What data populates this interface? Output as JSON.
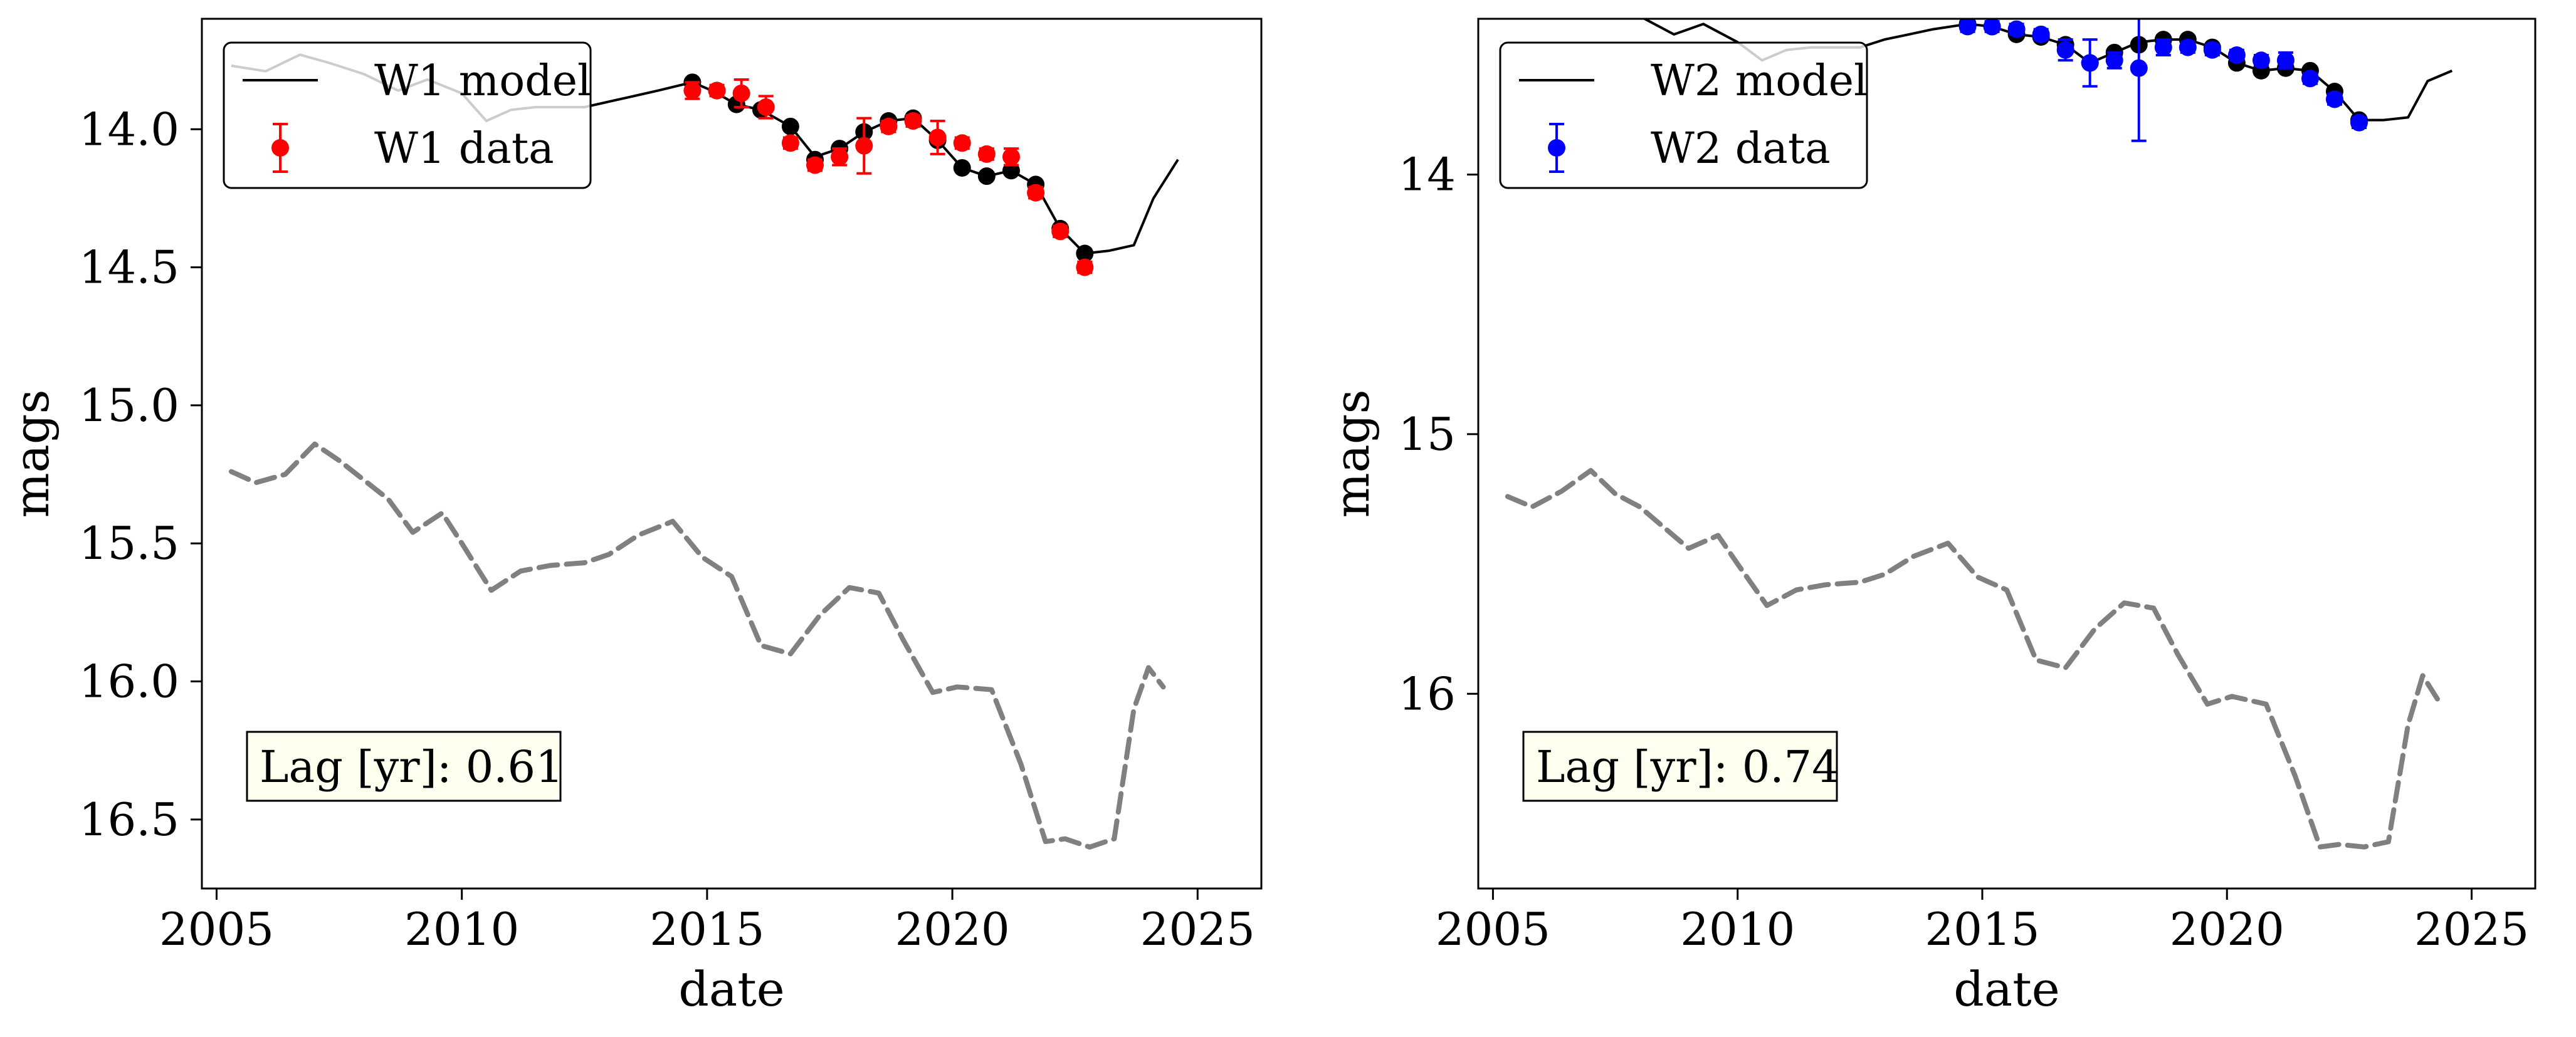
{
  "chart_data": [
    {
      "type": "line",
      "xlabel": "date",
      "ylabel": "mags",
      "xlim": [
        2004.7,
        2026.3
      ],
      "ylim": [
        16.75,
        13.6
      ],
      "y_inverted": true,
      "x_ticks": [
        2005,
        2010,
        2015,
        2020,
        2025
      ],
      "x_tick_labels": [
        "2005",
        "2010",
        "2015",
        "2020",
        "2025"
      ],
      "y_ticks": [
        14.0,
        14.5,
        15.0,
        15.5,
        16.0,
        16.5
      ],
      "y_tick_labels": [
        "14.0",
        "14.5",
        "15.0",
        "15.5",
        "16.0",
        "16.5"
      ],
      "legend_position": "top-left",
      "legend": [
        {
          "label": "W1 model",
          "marker": "line",
          "color": "#000000"
        },
        {
          "label": "W1 data",
          "marker": "errorbar-point",
          "color": "#ff0000"
        }
      ],
      "annotation": {
        "text": "Lag [yr]: 0.61",
        "position": "bottom-left",
        "background": "#fffff0"
      },
      "series": [
        {
          "name": "W1 model",
          "kind": "line",
          "color": "#000000",
          "x": [
            2005.3,
            2006.0,
            2006.7,
            2007.3,
            2008.0,
            2008.7,
            2009.3,
            2010.0,
            2010.5,
            2011.0,
            2011.5,
            2012.0,
            2012.5,
            2013.0,
            2013.5,
            2014.0,
            2014.7,
            2015.1,
            2015.6,
            2016.1,
            2016.7,
            2017.2,
            2017.7,
            2018.2,
            2018.7,
            2019.2,
            2019.7,
            2020.2,
            2020.7,
            2021.2,
            2021.7,
            2022.2,
            2022.7,
            2023.2,
            2023.7,
            2024.1,
            2024.6
          ],
          "y": [
            13.77,
            13.79,
            13.73,
            13.76,
            13.8,
            13.86,
            13.82,
            13.87,
            13.97,
            13.93,
            13.92,
            13.92,
            13.92,
            13.9,
            13.88,
            13.86,
            13.83,
            13.86,
            13.91,
            13.93,
            13.99,
            14.1,
            14.07,
            14.01,
            13.97,
            13.96,
            14.04,
            14.14,
            14.17,
            14.15,
            14.2,
            14.36,
            14.45,
            14.44,
            14.42,
            14.25,
            14.11
          ]
        },
        {
          "name": "W1 model points",
          "kind": "points",
          "color": "#000000",
          "x": [
            2014.7,
            2015.2,
            2015.6,
            2016.1,
            2016.7,
            2017.2,
            2017.7,
            2018.2,
            2018.7,
            2019.2,
            2019.7,
            2020.2,
            2020.7,
            2021.2,
            2021.7,
            2022.2,
            2022.7
          ],
          "y": [
            13.83,
            13.86,
            13.91,
            13.93,
            13.99,
            14.11,
            14.07,
            14.01,
            13.97,
            13.96,
            14.04,
            14.14,
            14.17,
            14.15,
            14.2,
            14.36,
            14.45
          ]
        },
        {
          "name": "W1 data",
          "kind": "errorbar",
          "color": "#ff0000",
          "x": [
            2014.7,
            2015.2,
            2015.7,
            2016.2,
            2016.7,
            2017.2,
            2017.7,
            2018.2,
            2018.7,
            2019.2,
            2019.7,
            2020.2,
            2020.7,
            2021.2,
            2021.7,
            2022.2,
            2022.7
          ],
          "y": [
            13.86,
            13.86,
            13.87,
            13.92,
            14.05,
            14.13,
            14.1,
            14.06,
            13.99,
            13.97,
            14.03,
            14.05,
            14.09,
            14.1,
            14.23,
            14.37,
            14.5
          ],
          "err": [
            0.03,
            0.02,
            0.05,
            0.04,
            0.02,
            0.02,
            0.03,
            0.1,
            0.02,
            0.02,
            0.06,
            0.02,
            0.02,
            0.03,
            0.02,
            0.02,
            0.02
          ]
        },
        {
          "name": "W1 driving",
          "kind": "dashed-line",
          "color": "#808080",
          "x": [
            2005.3,
            2005.8,
            2006.4,
            2007.0,
            2007.5,
            2008.0,
            2008.5,
            2009.0,
            2009.6,
            2010.0,
            2010.6,
            2011.2,
            2011.8,
            2012.5,
            2013.0,
            2013.6,
            2014.3,
            2014.9,
            2015.5,
            2016.1,
            2016.7,
            2017.3,
            2017.9,
            2018.5,
            2019.0,
            2019.6,
            2020.1,
            2020.8,
            2021.4,
            2021.9,
            2022.3,
            2022.8,
            2023.3,
            2023.7,
            2024.0,
            2024.3
          ],
          "y": [
            15.24,
            15.28,
            15.25,
            15.14,
            15.2,
            15.27,
            15.34,
            15.46,
            15.39,
            15.5,
            15.67,
            15.6,
            15.58,
            15.57,
            15.54,
            15.47,
            15.42,
            15.55,
            15.62,
            15.87,
            15.9,
            15.76,
            15.66,
            15.68,
            15.85,
            16.04,
            16.02,
            16.03,
            16.3,
            16.58,
            16.57,
            16.6,
            16.57,
            16.1,
            15.95,
            16.02
          ]
        }
      ]
    },
    {
      "type": "line",
      "xlabel": "date",
      "ylabel": "mags",
      "xlim": [
        2004.7,
        2026.3
      ],
      "ylim": [
        16.75,
        13.4
      ],
      "y_inverted": true,
      "x_ticks": [
        2005,
        2010,
        2015,
        2020,
        2025
      ],
      "x_tick_labels": [
        "2005",
        "2010",
        "2015",
        "2020",
        "2025"
      ],
      "y_ticks": [
        14,
        15,
        16
      ],
      "y_tick_labels": [
        "14",
        "15",
        "16"
      ],
      "legend_position": "top-left",
      "legend": [
        {
          "label": "W2 model",
          "marker": "line",
          "color": "#000000"
        },
        {
          "label": "W2 data",
          "marker": "errorbar-point",
          "color": "#0000ff"
        }
      ],
      "annotation": {
        "text": "Lag [yr]: 0.74",
        "position": "bottom-left",
        "background": "#fffff0"
      },
      "series": [
        {
          "name": "W2 model",
          "kind": "line",
          "color": "#000000",
          "x": [
            2005.3,
            2006.0,
            2006.7,
            2007.3,
            2008.0,
            2008.7,
            2009.3,
            2010.0,
            2010.5,
            2011.0,
            2011.5,
            2012.0,
            2012.5,
            2013.0,
            2013.5,
            2014.0,
            2014.7,
            2015.2,
            2015.7,
            2016.2,
            2016.7,
            2017.2,
            2017.7,
            2018.2,
            2018.7,
            2019.2,
            2019.7,
            2020.2,
            2020.7,
            2021.2,
            2021.7,
            2022.2,
            2022.7,
            2023.2,
            2023.7,
            2024.1,
            2024.6
          ],
          "y": [
            13.33,
            13.35,
            13.29,
            13.33,
            13.39,
            13.46,
            13.42,
            13.49,
            13.56,
            13.52,
            13.51,
            13.51,
            13.51,
            13.48,
            13.46,
            13.44,
            13.42,
            13.43,
            13.46,
            13.47,
            13.5,
            13.57,
            13.53,
            13.49,
            13.48,
            13.48,
            13.51,
            13.57,
            13.6,
            13.59,
            13.6,
            13.68,
            13.79,
            13.79,
            13.78,
            13.64,
            13.6
          ]
        },
        {
          "name": "W2 model points",
          "kind": "points",
          "color": "#000000",
          "x": [
            2014.7,
            2015.2,
            2015.7,
            2016.2,
            2016.7,
            2017.2,
            2017.7,
            2018.2,
            2018.7,
            2019.2,
            2019.7,
            2020.2,
            2020.7,
            2021.2,
            2021.7,
            2022.2,
            2022.7
          ],
          "y": [
            13.42,
            13.43,
            13.46,
            13.47,
            13.5,
            13.57,
            13.53,
            13.5,
            13.48,
            13.48,
            13.51,
            13.57,
            13.6,
            13.59,
            13.6,
            13.68,
            13.79
          ]
        },
        {
          "name": "W2 data",
          "kind": "errorbar",
          "color": "#0000ff",
          "x": [
            2014.7,
            2015.2,
            2015.7,
            2016.2,
            2016.7,
            2017.2,
            2017.7,
            2018.2,
            2018.7,
            2019.2,
            2019.7,
            2020.2,
            2020.7,
            2021.2,
            2021.7,
            2022.2,
            2022.7
          ],
          "y": [
            13.43,
            13.43,
            13.44,
            13.46,
            13.52,
            13.57,
            13.56,
            13.59,
            13.51,
            13.51,
            13.52,
            13.54,
            13.56,
            13.56,
            13.63,
            13.71,
            13.8
          ],
          "err": [
            0.02,
            0.02,
            0.02,
            0.02,
            0.04,
            0.09,
            0.03,
            0.28,
            0.03,
            0.02,
            0.02,
            0.02,
            0.02,
            0.03,
            0.02,
            0.02,
            0.02
          ]
        },
        {
          "name": "W2 driving",
          "kind": "dashed-line",
          "color": "#808080",
          "x": [
            2005.3,
            2005.8,
            2006.4,
            2007.0,
            2007.5,
            2008.0,
            2008.5,
            2009.0,
            2009.6,
            2010.0,
            2010.6,
            2011.2,
            2011.8,
            2012.5,
            2013.0,
            2013.6,
            2014.3,
            2014.9,
            2015.5,
            2016.1,
            2016.7,
            2017.3,
            2017.9,
            2018.5,
            2019.0,
            2019.6,
            2020.1,
            2020.8,
            2021.4,
            2021.9,
            2022.3,
            2022.8,
            2023.3,
            2023.7,
            2024.0,
            2024.3
          ],
          "y": [
            15.24,
            15.28,
            15.22,
            15.14,
            15.23,
            15.28,
            15.36,
            15.44,
            15.39,
            15.5,
            15.66,
            15.6,
            15.58,
            15.57,
            15.54,
            15.47,
            15.42,
            15.55,
            15.6,
            15.87,
            15.9,
            15.75,
            15.65,
            15.67,
            15.85,
            16.04,
            16.01,
            16.04,
            16.32,
            16.59,
            16.58,
            16.59,
            16.57,
            16.12,
            15.93,
            16.02
          ]
        }
      ]
    }
  ]
}
